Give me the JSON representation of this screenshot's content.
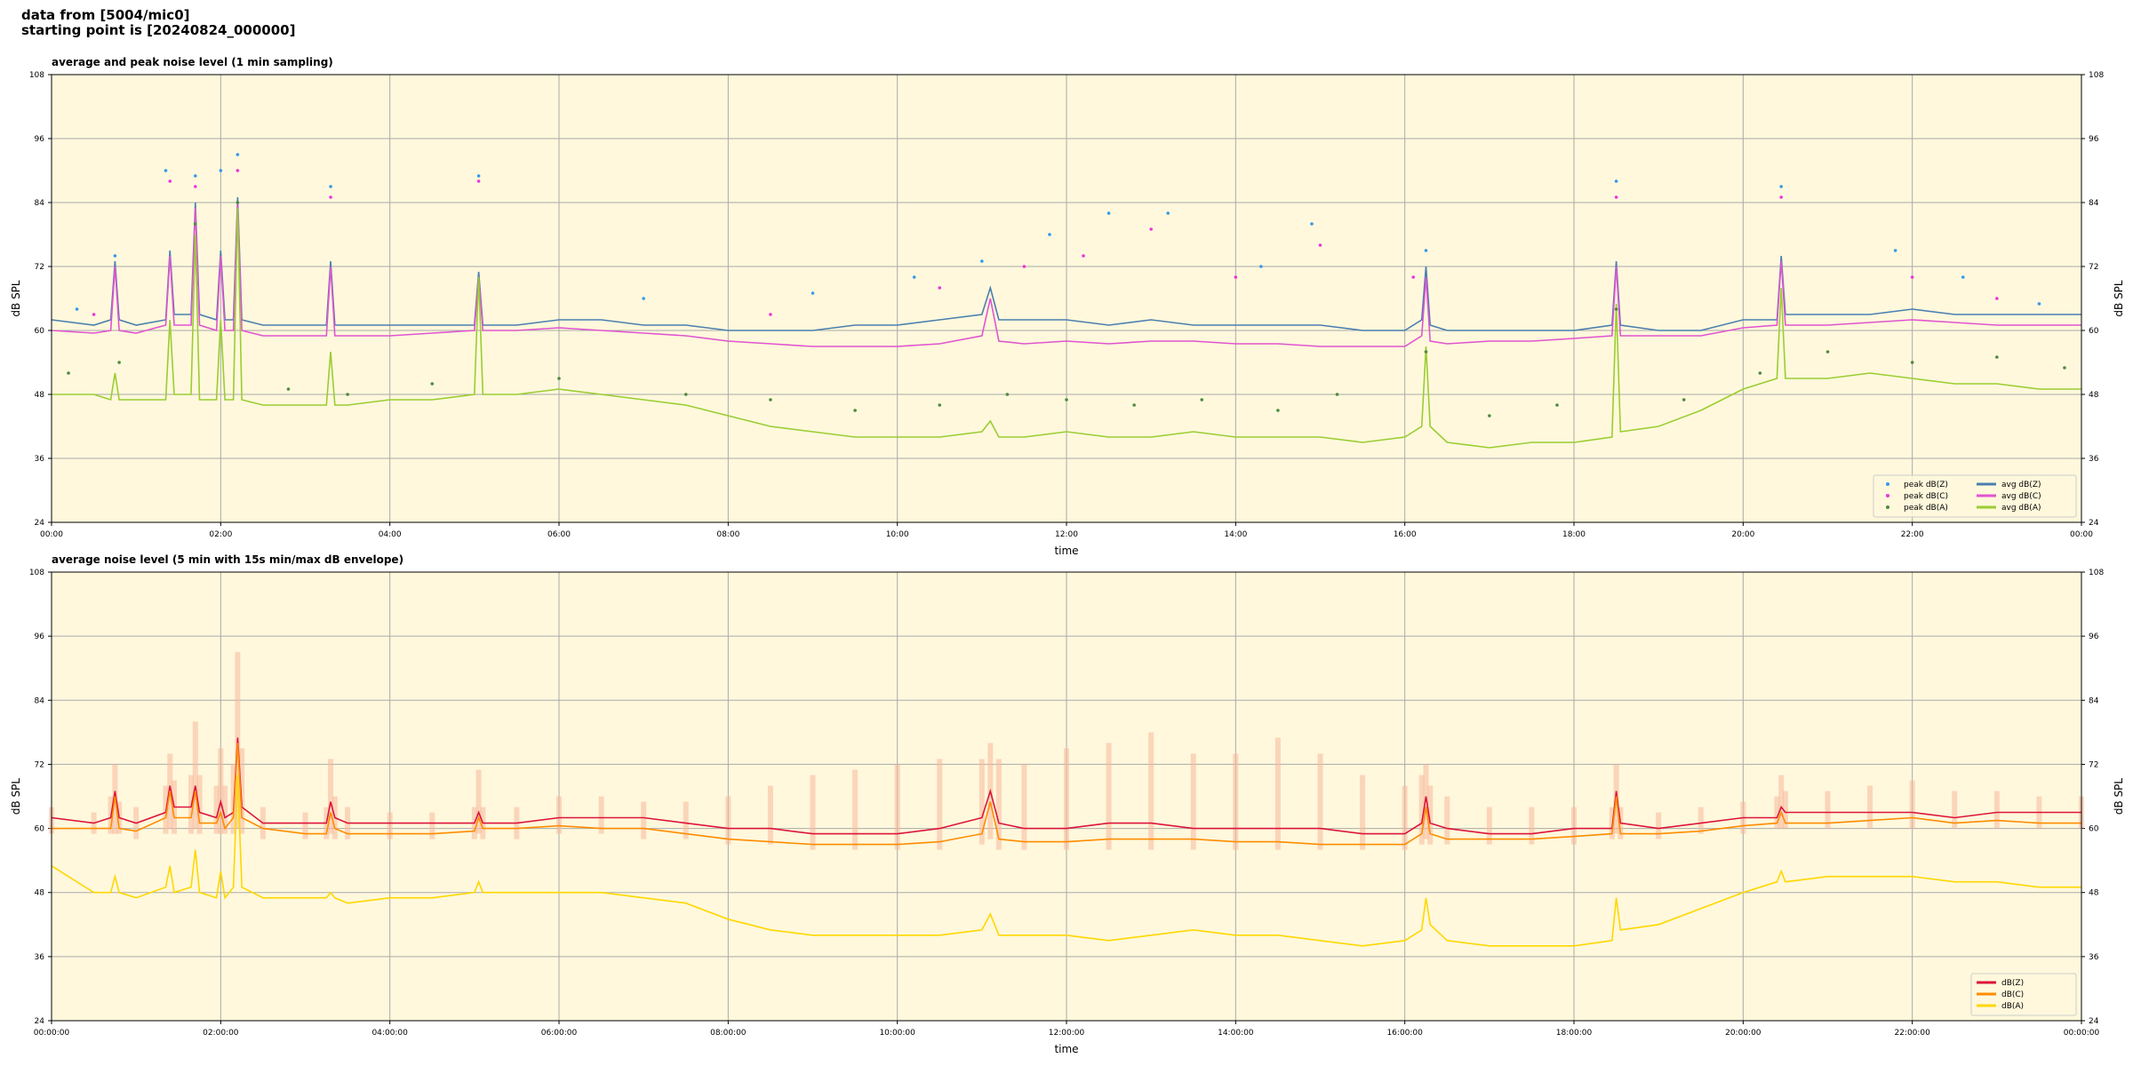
{
  "header": [
    "data from [5004/mic0]",
    "starting point is [20240824_000000]"
  ],
  "chart_data": [
    {
      "type": "line",
      "title": "average and peak noise level (1 min sampling)",
      "xlabel": "time",
      "ylabel": "dB SPL",
      "y2label": "dB SPL",
      "background": "#fff8dc",
      "grid": true,
      "legend": "lower right",
      "legend_columns": 2,
      "xlim": [
        0,
        24
      ],
      "ylim": [
        24,
        108
      ],
      "y2lim": [
        24,
        108
      ],
      "xticks": [
        {
          "value": 0,
          "label": "00:00"
        },
        {
          "value": 2,
          "label": "02:00"
        },
        {
          "value": 4,
          "label": "04:00"
        },
        {
          "value": 6,
          "label": "06:00"
        },
        {
          "value": 8,
          "label": "08:00"
        },
        {
          "value": 10,
          "label": "10:00"
        },
        {
          "value": 12,
          "label": "12:00"
        },
        {
          "value": 14,
          "label": "14:00"
        },
        {
          "value": 16,
          "label": "16:00"
        },
        {
          "value": 18,
          "label": "18:00"
        },
        {
          "value": 20,
          "label": "20:00"
        },
        {
          "value": 22,
          "label": "22:00"
        },
        {
          "value": 24,
          "label": "00:00"
        }
      ],
      "yticks": [
        24,
        36,
        48,
        60,
        72,
        84,
        96,
        108
      ],
      "y2ticks": [
        24,
        36,
        48,
        60,
        72,
        84,
        96,
        108
      ],
      "x": [
        0,
        0.5,
        0.7,
        0.75,
        0.8,
        1.0,
        1.35,
        1.4,
        1.45,
        1.65,
        1.7,
        1.75,
        1.95,
        2.0,
        2.05,
        2.15,
        2.2,
        2.25,
        2.5,
        3.0,
        3.25,
        3.3,
        3.35,
        3.5,
        4.0,
        4.5,
        5.0,
        5.05,
        5.1,
        5.5,
        6.0,
        6.5,
        7.0,
        7.5,
        8.0,
        8.5,
        9.0,
        9.5,
        10.0,
        10.5,
        11.0,
        11.1,
        11.2,
        11.5,
        12.0,
        12.5,
        13.0,
        13.5,
        14.0,
        14.5,
        15.0,
        15.5,
        16.0,
        16.2,
        16.25,
        16.3,
        16.5,
        17.0,
        17.5,
        18.0,
        18.45,
        18.5,
        18.55,
        19.0,
        19.5,
        20.0,
        20.4,
        20.45,
        20.5,
        21.0,
        21.5,
        22.0,
        22.5,
        23.0,
        23.5,
        24.0
      ],
      "series": [
        {
          "name": "peak dB(Z)",
          "style": "scatter",
          "color": "#3399ee",
          "x": [
            0.3,
            0.75,
            1.35,
            1.7,
            2.0,
            2.2,
            3.3,
            5.05,
            7.0,
            9.0,
            10.2,
            11.0,
            11.8,
            12.5,
            13.2,
            14.3,
            14.9,
            16.25,
            18.5,
            20.45,
            21.8,
            22.6,
            23.5
          ],
          "values": [
            64,
            74,
            90,
            89,
            90,
            93,
            87,
            89,
            66,
            67,
            70,
            73,
            78,
            82,
            82,
            72,
            80,
            75,
            88,
            87,
            75,
            70,
            65
          ]
        },
        {
          "name": "peak dB(C)",
          "style": "scatter",
          "color": "#ee33dd",
          "x": [
            0.5,
            1.4,
            1.7,
            2.2,
            3.3,
            5.05,
            8.5,
            10.5,
            11.5,
            12.2,
            13.0,
            14.0,
            15.0,
            16.1,
            18.5,
            20.45,
            22.0,
            23.0
          ],
          "values": [
            63,
            88,
            87,
            90,
            85,
            88,
            63,
            68,
            72,
            74,
            79,
            70,
            76,
            70,
            85,
            85,
            70,
            66
          ]
        },
        {
          "name": "peak dB(A)",
          "style": "scatter",
          "color": "#4e8a3e",
          "x": [
            0.2,
            0.8,
            1.7,
            2.2,
            2.8,
            3.5,
            4.5,
            6.0,
            7.5,
            8.5,
            9.5,
            10.5,
            11.3,
            12.0,
            12.8,
            13.6,
            14.5,
            15.2,
            16.25,
            17.0,
            17.8,
            18.5,
            19.3,
            20.2,
            21.0,
            22.0,
            23.0,
            23.8
          ],
          "values": [
            52,
            54,
            80,
            84,
            49,
            48,
            50,
            51,
            48,
            47,
            45,
            46,
            48,
            47,
            46,
            47,
            45,
            48,
            56,
            44,
            46,
            64,
            47,
            52,
            56,
            54,
            55,
            53
          ]
        },
        {
          "name": "avg dB(Z)",
          "style": "line",
          "color": "#4a7fb0",
          "values": [
            62,
            61,
            62,
            73,
            62,
            61,
            62,
            75,
            63,
            63,
            84,
            63,
            62,
            75,
            62,
            62,
            85,
            62,
            61,
            61,
            61,
            73,
            61,
            61,
            61,
            61,
            61,
            71,
            61,
            61,
            62,
            62,
            61,
            61,
            60,
            60,
            60,
            61,
            61,
            62,
            63,
            68,
            62,
            62,
            62,
            61,
            62,
            61,
            61,
            61,
            61,
            60,
            60,
            62,
            72,
            61,
            60,
            60,
            60,
            60,
            61,
            73,
            61,
            60,
            60,
            62,
            62,
            74,
            63,
            63,
            63,
            64,
            63,
            63,
            63,
            63
          ]
        },
        {
          "name": "avg dB(C)",
          "style": "line",
          "color": "#e055d0",
          "values": [
            60,
            59.5,
            60,
            72,
            60,
            59.5,
            61,
            74,
            61,
            61,
            83,
            61,
            60,
            74,
            60,
            60,
            84,
            60,
            59,
            59,
            59,
            72,
            59,
            59,
            59,
            59.5,
            60,
            70,
            60,
            60,
            60.5,
            60,
            59.5,
            59,
            58,
            57.5,
            57,
            57,
            57,
            57.5,
            59,
            66,
            58,
            57.5,
            58,
            57.5,
            58,
            58,
            57.5,
            57.5,
            57,
            57,
            57,
            59,
            70,
            58,
            57.5,
            58,
            58,
            58.5,
            59,
            72,
            59,
            59,
            59,
            60.5,
            61,
            73,
            61,
            61,
            61.5,
            62,
            61.5,
            61,
            61,
            61
          ]
        },
        {
          "name": "avg dB(A)",
          "style": "line",
          "color": "#9acd32",
          "values": [
            48,
            48,
            47,
            52,
            47,
            47,
            47,
            62,
            48,
            48,
            78,
            47,
            47,
            62,
            47,
            47,
            83,
            47,
            46,
            46,
            46,
            56,
            46,
            46,
            47,
            47,
            48,
            70,
            48,
            48,
            49,
            48,
            47,
            46,
            44,
            42,
            41,
            40,
            40,
            40,
            41,
            43,
            40,
            40,
            41,
            40,
            40,
            41,
            40,
            40,
            40,
            39,
            40,
            42,
            57,
            42,
            39,
            38,
            39,
            39,
            40,
            65,
            41,
            42,
            45,
            49,
            51,
            68,
            51,
            51,
            52,
            51,
            50,
            50,
            49,
            49
          ]
        }
      ]
    },
    {
      "type": "line",
      "title": "average noise level (5 min with 15s min/max dB envelope)",
      "xlabel": "time",
      "ylabel": "dB SPL",
      "y2label": "dB SPL",
      "background": "#fff8dc",
      "grid": true,
      "legend": "lower right",
      "legend_columns": 1,
      "xlim": [
        0,
        24
      ],
      "ylim": [
        24,
        108
      ],
      "y2lim": [
        24,
        108
      ],
      "xticks": [
        {
          "value": 0,
          "label": "00:00:00"
        },
        {
          "value": 2,
          "label": "02:00:00"
        },
        {
          "value": 4,
          "label": "04:00:00"
        },
        {
          "value": 6,
          "label": "06:00:00"
        },
        {
          "value": 8,
          "label": "08:00:00"
        },
        {
          "value": 10,
          "label": "10:00:00"
        },
        {
          "value": 12,
          "label": "12:00:00"
        },
        {
          "value": 14,
          "label": "14:00:00"
        },
        {
          "value": 16,
          "label": "16:00:00"
        },
        {
          "value": 18,
          "label": "18:00:00"
        },
        {
          "value": 20,
          "label": "20:00:00"
        },
        {
          "value": 22,
          "label": "22:00:00"
        },
        {
          "value": 24,
          "label": "00:00:00"
        }
      ],
      "yticks": [
        24,
        36,
        48,
        60,
        72,
        84,
        96,
        108
      ],
      "y2ticks": [
        24,
        36,
        48,
        60,
        72,
        84,
        96,
        108
      ],
      "x": [
        0,
        0.5,
        0.7,
        0.75,
        0.8,
        1.0,
        1.35,
        1.4,
        1.45,
        1.65,
        1.7,
        1.75,
        1.95,
        2.0,
        2.05,
        2.15,
        2.2,
        2.25,
        2.5,
        3.0,
        3.25,
        3.3,
        3.35,
        3.5,
        4.0,
        4.5,
        5.0,
        5.05,
        5.1,
        5.5,
        6.0,
        6.5,
        7.0,
        7.5,
        8.0,
        8.5,
        9.0,
        9.5,
        10.0,
        10.5,
        11.0,
        11.1,
        11.2,
        11.5,
        12.0,
        12.5,
        13.0,
        13.5,
        14.0,
        14.5,
        15.0,
        15.5,
        16.0,
        16.2,
        16.25,
        16.3,
        16.5,
        17.0,
        17.5,
        18.0,
        18.45,
        18.5,
        18.55,
        19.0,
        19.5,
        20.0,
        20.4,
        20.45,
        20.5,
        21.0,
        21.5,
        22.0,
        22.5,
        23.0,
        23.5,
        24.0
      ],
      "series": [
        {
          "style": "band",
          "color": "#f7b89c",
          "values": [
            64,
            63,
            66,
            72,
            65,
            64,
            68,
            74,
            69,
            70,
            80,
            70,
            68,
            75,
            68,
            72,
            93,
            75,
            64,
            63,
            64,
            73,
            66,
            64,
            63,
            63,
            64,
            71,
            64,
            64,
            66,
            66,
            65,
            65,
            66,
            68,
            70,
            71,
            72,
            73,
            73,
            76,
            73,
            72,
            75,
            76,
            78,
            74,
            74,
            77,
            74,
            70,
            68,
            70,
            72,
            68,
            66,
            64,
            64,
            64,
            64,
            72,
            64,
            63,
            64,
            65,
            66,
            70,
            67,
            67,
            68,
            69,
            67,
            67,
            66,
            66
          ],
          "lower": [
            59,
            59,
            59,
            59,
            59,
            58,
            59,
            60,
            59,
            59,
            60,
            59,
            59,
            59,
            59,
            59,
            60,
            59,
            58,
            58,
            58,
            59,
            58,
            58,
            58,
            58,
            58,
            59,
            58,
            58,
            59,
            59,
            58,
            58,
            57,
            57,
            56,
            56,
            56,
            56,
            57,
            58,
            56,
            56,
            56,
            56,
            56,
            56,
            56,
            56,
            56,
            56,
            56,
            57,
            58,
            57,
            57,
            57,
            57,
            57,
            58,
            59,
            58,
            58,
            59,
            59,
            60,
            60,
            60,
            60,
            60,
            60,
            60,
            60,
            60,
            60
          ]
        },
        {
          "name": "dB(Z)",
          "style": "line",
          "color": "#dc143c",
          "values": [
            62,
            61,
            62,
            67,
            62,
            61,
            63,
            68,
            64,
            64,
            68,
            63,
            62,
            65,
            62,
            63,
            77,
            64,
            61,
            61,
            61,
            65,
            62,
            61,
            61,
            61,
            61,
            63,
            61,
            61,
            62,
            62,
            62,
            61,
            60,
            60,
            59,
            59,
            59,
            60,
            62,
            67,
            61,
            60,
            60,
            61,
            61,
            60,
            60,
            60,
            60,
            59,
            59,
            61,
            66,
            61,
            60,
            59,
            59,
            60,
            60,
            67,
            61,
            60,
            61,
            62,
            62,
            64,
            63,
            63,
            63,
            63,
            62,
            63,
            63,
            63
          ]
        },
        {
          "name": "dB(C)",
          "style": "line",
          "color": "#ff8c00",
          "values": [
            60,
            60,
            60,
            66,
            60,
            59.5,
            62,
            67,
            62,
            62,
            67,
            61,
            61,
            63,
            60,
            62,
            76,
            62,
            60,
            59,
            59,
            63,
            60,
            59,
            59,
            59,
            59.5,
            62,
            60,
            60,
            60.5,
            60,
            60,
            59,
            58,
            57.5,
            57,
            57,
            57,
            57.5,
            59,
            65,
            58,
            57.5,
            57.5,
            58,
            58,
            58,
            57.5,
            57.5,
            57,
            57,
            57,
            59,
            64,
            59,
            58,
            58,
            58,
            58.5,
            59,
            66,
            59,
            59,
            59.5,
            60.5,
            61,
            63,
            61,
            61,
            61.5,
            62,
            61,
            61.5,
            61,
            61
          ]
        },
        {
          "name": "dB(A)",
          "style": "line",
          "color": "#ffd700",
          "values": [
            53,
            48,
            48,
            51,
            48,
            47,
            49,
            53,
            48,
            49,
            56,
            48,
            47,
            52,
            47,
            49,
            70,
            49,
            47,
            47,
            47,
            48,
            47,
            46,
            47,
            47,
            48,
            50,
            48,
            48,
            48,
            48,
            47,
            46,
            43,
            41,
            40,
            40,
            40,
            40,
            41,
            44,
            40,
            40,
            40,
            39,
            40,
            41,
            40,
            40,
            39,
            38,
            39,
            41,
            47,
            42,
            39,
            38,
            38,
            38,
            39,
            47,
            41,
            42,
            45,
            48,
            50,
            52,
            50,
            51,
            51,
            51,
            50,
            50,
            49,
            49
          ]
        }
      ]
    }
  ]
}
